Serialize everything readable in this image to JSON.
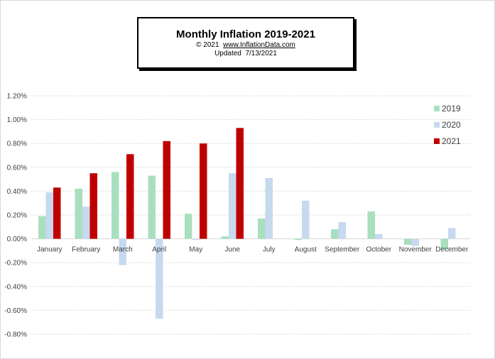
{
  "header": {
    "title": "Monthly Inflation 2019-2021",
    "copyright": "© 2021",
    "site": "www.InflationData.com",
    "updated_label": "Updated",
    "updated_date": "7/13/2021"
  },
  "chart_data": {
    "type": "bar",
    "title": "Monthly Inflation 2019-2021",
    "categories": [
      "January",
      "February",
      "March",
      "April",
      "May",
      "June",
      "July",
      "August",
      "September",
      "October",
      "November",
      "December"
    ],
    "ylim": [
      -0.008,
      0.012
    ],
    "yticks": [
      -0.008,
      -0.006,
      -0.004,
      -0.002,
      0,
      0.002,
      0.004,
      0.006,
      0.008,
      0.01,
      0.012
    ],
    "ytick_labels": [
      "-0.80%",
      "-0.60%",
      "-0.40%",
      "-0.20%",
      "0.00%",
      "0.20%",
      "0.40%",
      "0.60%",
      "0.80%",
      "1.00%",
      "1.20%"
    ],
    "grid": true,
    "legend_position": "top-right",
    "series": [
      {
        "name": "2019",
        "color": "#a9dfbf",
        "values": [
          0.0019,
          0.0042,
          0.0056,
          0.0053,
          0.0021,
          0.0002,
          0.0017,
          -0.0001,
          0.0008,
          0.0023,
          -0.0005,
          -0.0009
        ]
      },
      {
        "name": "2020",
        "color": "#c6d9ef",
        "values": [
          0.0039,
          0.0027,
          -0.0022,
          -0.0067,
          -0.0001,
          0.0055,
          0.0051,
          0.0032,
          0.0014,
          0.0004,
          -0.0006,
          0.0009
        ]
      },
      {
        "name": "2021",
        "color": "#c00000",
        "values": [
          0.0043,
          0.0055,
          0.0071,
          0.0082,
          0.008,
          0.0093,
          null,
          null,
          null,
          null,
          null,
          null
        ]
      }
    ]
  }
}
